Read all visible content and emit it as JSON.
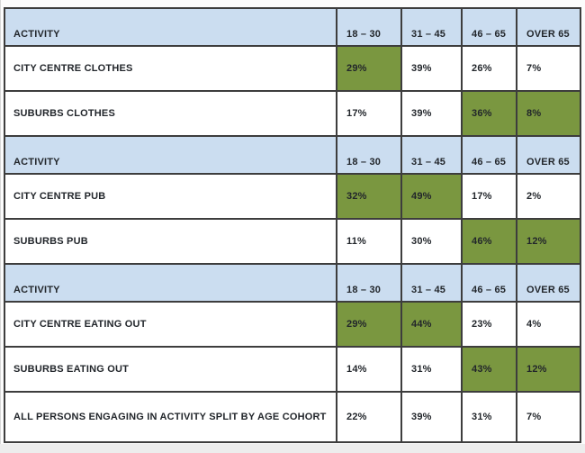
{
  "colors": {
    "page_bg": "#fcfcfc",
    "header_bg": "#cbddf0",
    "highlight_bg": "#7a9740",
    "row_bg": "#ffffff",
    "border": "#3d3d3d",
    "text": "#22262b"
  },
  "chart_data": {
    "type": "table",
    "activity_header": "ACTIVITY",
    "age_columns": [
      "18 – 30",
      "31 – 45",
      "46 – 65",
      "OVER 65"
    ],
    "highlight_meaning": "green-filled cells mark leading age cohorts",
    "sections": [
      {
        "rows": [
          {
            "label": "CITY CENTRE CLOTHES",
            "values": [
              "29%",
              "39%",
              "26%",
              "7%"
            ],
            "highlighted": [
              true,
              false,
              false,
              false
            ]
          },
          {
            "label": "SUBURBS CLOTHES",
            "values": [
              "17%",
              "39%",
              "36%",
              "8%"
            ],
            "highlighted": [
              false,
              false,
              true,
              true
            ]
          }
        ]
      },
      {
        "rows": [
          {
            "label": "CITY CENTRE PUB",
            "values": [
              "32%",
              "49%",
              "17%",
              "2%"
            ],
            "highlighted": [
              true,
              true,
              false,
              false
            ]
          },
          {
            "label": "SUBURBS PUB",
            "values": [
              "11%",
              "30%",
              "46%",
              "12%"
            ],
            "highlighted": [
              false,
              false,
              true,
              true
            ]
          }
        ]
      },
      {
        "rows": [
          {
            "label": "CITY CENTRE EATING OUT",
            "values": [
              "29%",
              "44%",
              "23%",
              "4%"
            ],
            "highlighted": [
              true,
              true,
              false,
              false
            ]
          },
          {
            "label": "SUBURBS EATING OUT",
            "values": [
              "14%",
              "31%",
              "43%",
              "12%"
            ],
            "highlighted": [
              false,
              false,
              true,
              true
            ]
          },
          {
            "label": "ALL PERSONS ENGAGING IN ACTIVITY SPLIT BY AGE COHORT",
            "values": [
              "22%",
              "39%",
              "31%",
              "7%"
            ],
            "highlighted": [
              false,
              false,
              false,
              false
            ]
          }
        ]
      }
    ]
  }
}
